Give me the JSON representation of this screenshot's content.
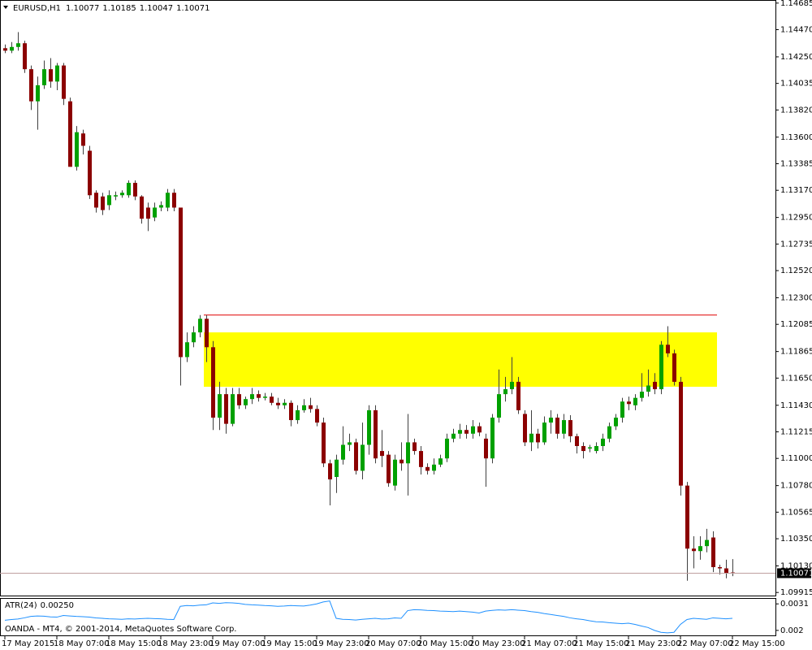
{
  "chart_data": {
    "type": "candlestick",
    "symbol": "EURUSD,H1",
    "categories": [
      "17 May 2015",
      null,
      null,
      null,
      null,
      null,
      null,
      null,
      "18 May 07:00",
      null,
      null,
      null,
      null,
      null,
      null,
      null,
      "18 May 15:00",
      null,
      null,
      null,
      null,
      null,
      null,
      null,
      "18 May 23:00",
      null,
      null,
      null,
      null,
      null,
      null,
      null,
      "19 May 07:00",
      null,
      null,
      null,
      null,
      null,
      null,
      null,
      "19 May 15:00",
      null,
      null,
      null,
      null,
      null,
      null,
      null,
      "19 May 23:00",
      null,
      null,
      null,
      null,
      null,
      null,
      null,
      "20 May 07:00",
      null,
      null,
      null,
      null,
      null,
      null,
      null,
      "20 May 15:00",
      null,
      null,
      null,
      null,
      null,
      null,
      null,
      "20 May 23:00",
      null,
      null,
      null,
      null,
      null,
      null,
      null,
      "21 May 07:00",
      null,
      null,
      null,
      null,
      null,
      null,
      null,
      "21 May 15:00",
      null,
      null,
      null,
      null,
      null,
      null,
      null,
      "21 May 23:00",
      null,
      null,
      null,
      null,
      null,
      null,
      null,
      "22 May 07:00",
      null,
      null,
      null,
      null,
      null,
      null,
      null,
      "22 May 15:00"
    ],
    "open": [
      1.1432,
      1.143,
      1.1433,
      1.1436,
      1.1415,
      1.1389,
      1.1402,
      1.1415,
      1.1405,
      1.1418,
      1.1389,
      1.1336,
      1.1363,
      1.1349,
      1.1315,
      1.1312,
      1.1305,
      1.1312,
      1.1313,
      1.1313,
      1.1323,
      1.1312,
      1.1303,
      1.1295,
      1.1303,
      1.1303,
      1.1315,
      1.1303,
      1.1182,
      1.1194,
      1.1202,
      1.1213,
      1.119,
      1.1133,
      1.1152,
      1.1128,
      1.1152,
      1.1143,
      1.1148,
      1.1152,
      1.1149,
      1.115,
      1.1145,
      1.1143,
      1.1145,
      1.1131,
      1.1139,
      1.1143,
      1.114,
      1.1129,
      1.1096,
      1.1085,
      1.1099,
      1.1111,
      1.1113,
      1.109,
      1.1111,
      1.1139,
      1.1106,
      1.1103,
      1.1078,
      1.1099,
      1.1096,
      1.1113,
      1.1106,
      1.1093,
      1.109,
      1.1095,
      1.11,
      1.1116,
      1.112,
      1.1123,
      1.112,
      1.1126,
      1.1116,
      1.11,
      1.1133,
      1.1152,
      1.1156,
      1.1162,
      1.1136,
      1.1113,
      1.112,
      1.1113,
      1.1129,
      1.1133,
      1.112,
      1.1131,
      1.1118,
      1.111,
      1.1108,
      1.1106,
      1.111,
      1.1116,
      1.1126,
      1.1133,
      1.1146,
      1.1143,
      1.1149,
      1.1154,
      1.1162,
      1.1156,
      1.1192,
      1.1185,
      1.1162,
      1.1078,
      1.1027,
      1.1025,
      1.1029,
      1.1036,
      1.1012,
      1.1011,
      1.10077
    ],
    "high": [
      1.1435,
      1.1437,
      1.1445,
      1.1438,
      1.1418,
      1.1409,
      1.1422,
      1.1424,
      1.142,
      1.142,
      1.1392,
      1.1369,
      1.1366,
      1.1353,
      1.1317,
      1.1315,
      1.1317,
      1.1316,
      1.1317,
      1.1325,
      1.1325,
      1.1313,
      1.1307,
      1.1307,
      1.1308,
      1.1318,
      1.1318,
      1.1303,
      1.1202,
      1.1207,
      1.1216,
      1.1216,
      1.1195,
      1.1162,
      1.1157,
      1.1157,
      1.1157,
      1.115,
      1.1157,
      1.1155,
      1.1153,
      1.1153,
      1.1149,
      1.1148,
      1.1147,
      1.1143,
      1.1148,
      1.1149,
      1.1143,
      1.1133,
      1.1099,
      1.1103,
      1.1126,
      1.112,
      1.1116,
      1.1129,
      1.1143,
      1.1143,
      1.1123,
      1.1106,
      1.1103,
      1.1113,
      1.1136,
      1.1116,
      1.111,
      1.1096,
      1.11,
      1.1103,
      1.112,
      1.1124,
      1.1128,
      1.1127,
      1.1131,
      1.1129,
      1.112,
      1.1136,
      1.1172,
      1.1166,
      1.1182,
      1.1166,
      1.1139,
      1.1139,
      1.1124,
      1.1134,
      1.1139,
      1.1136,
      1.1136,
      1.1135,
      1.112,
      1.1113,
      1.1111,
      1.1113,
      1.112,
      1.1129,
      1.1136,
      1.1149,
      1.115,
      1.1152,
      1.1169,
      1.1172,
      1.1169,
      1.1195,
      1.1207,
      1.1188,
      1.1166,
      1.1081,
      1.1037,
      1.1037,
      1.1043,
      1.1041,
      1.1014,
      1.1018,
      1.10185
    ],
    "low": [
      1.1428,
      1.1428,
      1.143,
      1.1412,
      1.1382,
      1.1366,
      1.1399,
      1.14,
      1.1398,
      1.1386,
      1.1336,
      1.1333,
      1.1346,
      1.131,
      1.1299,
      1.1297,
      1.1301,
      1.1309,
      1.1311,
      1.1311,
      1.1309,
      1.129,
      1.1284,
      1.1292,
      1.13,
      1.13,
      1.13,
      1.1159,
      1.1178,
      1.119,
      1.1198,
      1.1178,
      1.1123,
      1.1123,
      1.112,
      1.1126,
      1.114,
      1.114,
      1.1144,
      1.1146,
      1.1147,
      1.1143,
      1.114,
      1.114,
      1.1126,
      1.1128,
      1.1137,
      1.1137,
      1.1126,
      1.1093,
      1.1062,
      1.1072,
      1.1095,
      1.1106,
      1.1087,
      1.1083,
      1.1103,
      1.1096,
      1.1093,
      1.1077,
      1.1074,
      1.109,
      1.107,
      1.1103,
      1.1087,
      1.1087,
      1.1087,
      1.1093,
      1.1097,
      1.1113,
      1.1116,
      1.1116,
      1.1116,
      1.1118,
      1.1077,
      1.1096,
      1.1129,
      1.1146,
      1.1152,
      1.1136,
      1.111,
      1.1106,
      1.1108,
      1.1111,
      1.112,
      1.1116,
      1.1116,
      1.1113,
      1.1104,
      1.11,
      1.1105,
      1.1104,
      1.1106,
      1.1113,
      1.1123,
      1.1129,
      1.1139,
      1.1139,
      1.1146,
      1.115,
      1.1152,
      1.1152,
      1.1182,
      1.1159,
      1.107,
      1.1001,
      1.1011,
      1.1018,
      1.1024,
      1.1008,
      1.1006,
      1.1003,
      1.10047
    ],
    "close": [
      1.143,
      1.1433,
      1.1436,
      1.1415,
      1.1389,
      1.1402,
      1.1415,
      1.1405,
      1.1418,
      1.1391,
      1.1336,
      1.1364,
      1.1353,
      1.1313,
      1.1303,
      1.1301,
      1.1313,
      1.1313,
      1.1315,
      1.1323,
      1.1312,
      1.1294,
      1.1294,
      1.1303,
      1.1305,
      1.1315,
      1.1303,
      1.1182,
      1.1194,
      1.1202,
      1.1213,
      1.119,
      1.1133,
      1.1152,
      1.1128,
      1.1152,
      1.1143,
      1.1148,
      1.1152,
      1.1149,
      1.115,
      1.1145,
      1.1143,
      1.1145,
      1.1131,
      1.1139,
      1.1143,
      1.114,
      1.1129,
      1.1096,
      1.1083,
      1.1099,
      1.1111,
      1.1113,
      1.109,
      1.1111,
      1.1139,
      1.11,
      1.1102,
      1.108,
      1.1099,
      1.1096,
      1.1113,
      1.1106,
      1.1093,
      1.109,
      1.1095,
      1.11,
      1.1116,
      1.112,
      1.1123,
      1.112,
      1.1126,
      1.1121,
      1.11,
      1.1133,
      1.1152,
      1.1156,
      1.1162,
      1.1139,
      1.1113,
      1.112,
      1.1113,
      1.1129,
      1.1133,
      1.112,
      1.1131,
      1.1118,
      1.111,
      1.1106,
      1.1109,
      1.111,
      1.1116,
      1.1126,
      1.1133,
      1.1146,
      1.1144,
      1.1149,
      1.1154,
      1.1159,
      1.1156,
      1.1192,
      1.1185,
      1.1162,
      1.1078,
      1.1027,
      1.1025,
      1.1029,
      1.1034,
      1.1012,
      1.1011,
      1.1007,
      1.10071
    ],
    "up_color": "#00a000",
    "down_color": "#8b0000",
    "ylim": [
      1.0989,
      1.1471
    ],
    "yticks": [
      1.14685,
      {
        "value": 1.1447,
        "label": "1.14470"
      },
      {
        "value": 1.1425,
        "label": "1.14250"
      },
      1.14035,
      {
        "value": 1.1382,
        "label": "1.13820"
      },
      {
        "value": 1.136,
        "label": "1.13600"
      },
      1.13385,
      {
        "value": 1.1317,
        "label": "1.13170"
      },
      {
        "value": 1.1295,
        "label": "1.12950"
      },
      1.12735,
      {
        "value": 1.1252,
        "label": "1.12520"
      },
      {
        "value": 1.123,
        "label": "1.12300"
      },
      1.12085,
      1.11865,
      {
        "value": 1.1165,
        "label": "1.11650"
      },
      {
        "value": 1.1143,
        "label": "1.11430"
      },
      1.11215,
      {
        "value": 1.11,
        "label": "1.11000"
      },
      {
        "value": 1.1078,
        "label": "1.10780"
      },
      1.10565,
      {
        "value": 1.1035,
        "label": "1.10350"
      },
      {
        "value": 1.1013,
        "label": "1.10130"
      },
      1.09915
    ],
    "zone": {
      "high": 1.1202,
      "low": 1.1158,
      "color": "#ffff00"
    },
    "resistance": {
      "value": 1.1216,
      "color": "#e00000"
    },
    "indicator": {
      "name": "ATR(24)",
      "current_label": "0.00250",
      "color": "#1e90ff",
      "values": [
        0.00242,
        0.00245,
        0.00247,
        0.00252,
        0.00258,
        0.0026,
        0.00259,
        0.00256,
        0.00255,
        0.00262,
        0.0026,
        0.00258,
        0.00257,
        0.00255,
        0.00252,
        0.0025,
        0.00248,
        0.00247,
        0.00246,
        0.00248,
        0.00247,
        0.00249,
        0.0025,
        0.00249,
        0.00248,
        0.00246,
        0.00245,
        0.003,
        0.00303,
        0.00302,
        0.00305,
        0.00306,
        0.00314,
        0.00312,
        0.00315,
        0.00314,
        0.00312,
        0.00308,
        0.00306,
        0.00305,
        0.00303,
        0.00302,
        0.003,
        0.00301,
        0.00303,
        0.00302,
        0.00301,
        0.00305,
        0.0031,
        0.00318,
        0.00322,
        0.0025,
        0.00246,
        0.00245,
        0.00243,
        0.00246,
        0.00248,
        0.0025,
        0.00247,
        0.00248,
        0.00252,
        0.0025,
        0.00282,
        0.00286,
        0.00285,
        0.00283,
        0.00282,
        0.0028,
        0.00279,
        0.00278,
        0.0028,
        0.00278,
        0.00276,
        0.00272,
        0.0028,
        0.00283,
        0.00285,
        0.00284,
        0.00286,
        0.00284,
        0.00282,
        0.00278,
        0.00275,
        0.0027,
        0.00266,
        0.00262,
        0.00258,
        0.00252,
        0.00248,
        0.00245,
        0.0024,
        0.00236,
        0.00235,
        0.00232,
        0.0023,
        0.00228,
        0.0023,
        0.00225,
        0.00218,
        0.00212,
        0.002,
        0.00192,
        0.0019,
        0.00192,
        0.00225,
        0.00245,
        0.0025,
        0.00248,
        0.00246,
        0.00252,
        0.0025,
        0.00248,
        0.0025
      ],
      "ylim": [
        0.00176,
        0.00331
      ],
      "yticks": [
        0.0031,
        0.002
      ]
    },
    "footer": "OANDA - MT4, © 2001-2014, MetaQuotes Software Corp."
  }
}
